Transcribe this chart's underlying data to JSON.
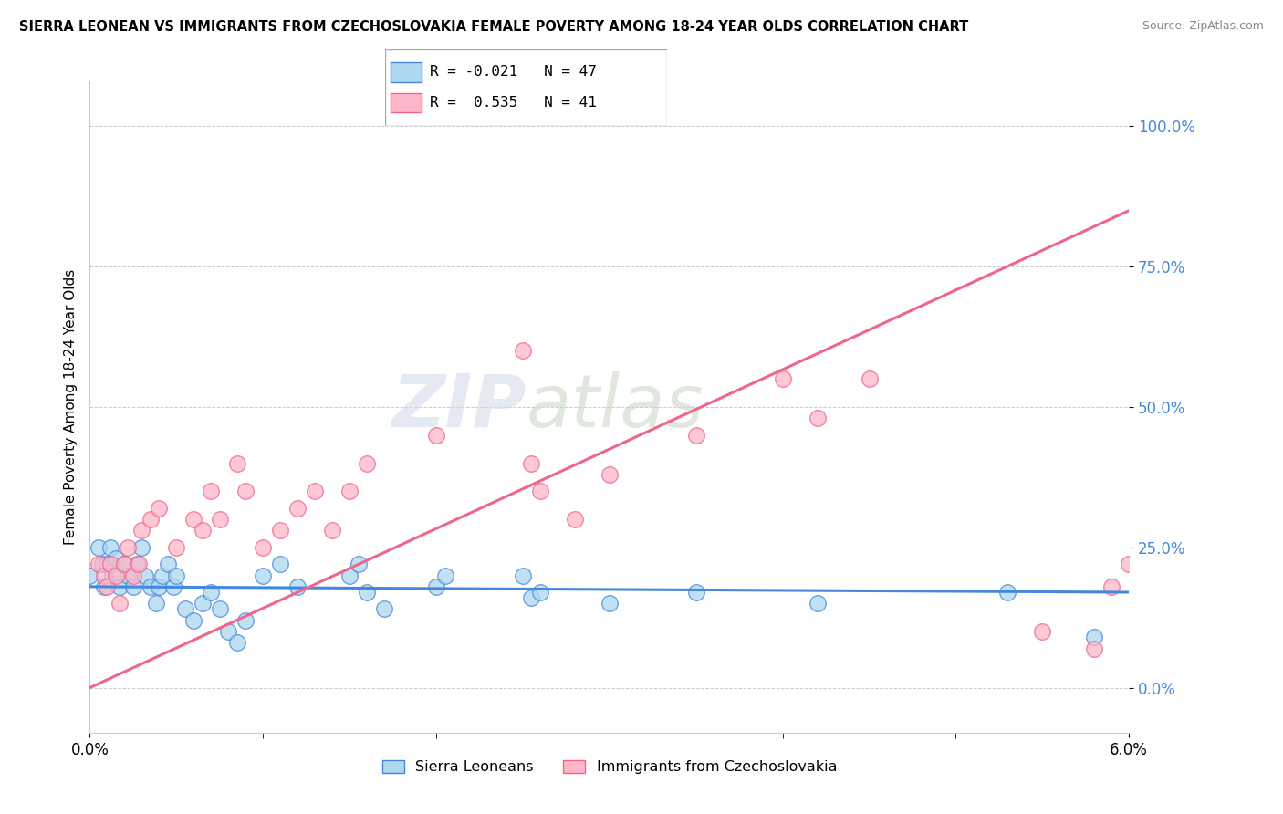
{
  "title": "SIERRA LEONEAN VS IMMIGRANTS FROM CZECHOSLOVAKIA FEMALE POVERTY AMONG 18-24 YEAR OLDS CORRELATION CHART",
  "source": "Source: ZipAtlas.com",
  "ylabel": "Female Poverty Among 18-24 Year Olds",
  "ytick_labels": [
    "0.0%",
    "25.0%",
    "50.0%",
    "75.0%",
    "100.0%"
  ],
  "ytick_values": [
    0,
    25,
    50,
    75,
    100
  ],
  "xlim": [
    0.0,
    6.0
  ],
  "ylim": [
    -8,
    108
  ],
  "legend_label1": "Sierra Leoneans",
  "legend_label2": "Immigrants from Czechoslovakia",
  "R1": -0.021,
  "N1": 47,
  "R2": 0.535,
  "N2": 41,
  "color1": "#add8f0",
  "color2": "#ffb6c8",
  "line_color1": "#4488dd",
  "line_color2": "#ee6688",
  "watermark_zip": "ZIP",
  "watermark_atlas": "atlas",
  "blue_x": [
    0.0,
    0.05,
    0.07,
    0.08,
    0.1,
    0.12,
    0.13,
    0.15,
    0.17,
    0.2,
    0.22,
    0.25,
    0.27,
    0.3,
    0.32,
    0.35,
    0.38,
    0.4,
    0.42,
    0.45,
    0.48,
    0.5,
    0.55,
    0.6,
    0.65,
    0.7,
    0.75,
    0.8,
    0.85,
    0.9,
    1.0,
    1.1,
    1.2,
    1.5,
    1.55,
    1.6,
    1.7,
    2.0,
    2.05,
    2.5,
    2.55,
    2.6,
    3.0,
    3.5,
    4.2,
    5.3,
    5.8
  ],
  "blue_y": [
    20,
    25,
    22,
    18,
    22,
    25,
    20,
    23,
    18,
    22,
    20,
    18,
    22,
    25,
    20,
    18,
    15,
    18,
    20,
    22,
    18,
    20,
    14,
    12,
    15,
    17,
    14,
    10,
    8,
    12,
    20,
    22,
    18,
    20,
    22,
    17,
    14,
    18,
    20,
    20,
    16,
    17,
    15,
    17,
    15,
    17,
    9
  ],
  "pink_x": [
    0.05,
    0.08,
    0.1,
    0.12,
    0.15,
    0.17,
    0.2,
    0.22,
    0.25,
    0.28,
    0.3,
    0.35,
    0.4,
    0.5,
    0.6,
    0.65,
    0.7,
    0.75,
    0.85,
    0.9,
    1.0,
    1.1,
    1.2,
    1.3,
    1.4,
    1.5,
    1.6,
    2.0,
    2.5,
    2.55,
    2.6,
    2.8,
    3.0,
    3.5,
    4.0,
    4.2,
    4.5,
    5.5,
    5.8,
    5.9,
    6.0
  ],
  "pink_y": [
    22,
    20,
    18,
    22,
    20,
    15,
    22,
    25,
    20,
    22,
    28,
    30,
    32,
    25,
    30,
    28,
    35,
    30,
    40,
    35,
    25,
    28,
    32,
    35,
    28,
    35,
    40,
    45,
    60,
    40,
    35,
    30,
    38,
    45,
    55,
    48,
    55,
    10,
    7,
    18,
    22
  ],
  "blue_line_y0": 18,
  "blue_line_y1": 17,
  "pink_line_y0": 0,
  "pink_line_y1": 85
}
